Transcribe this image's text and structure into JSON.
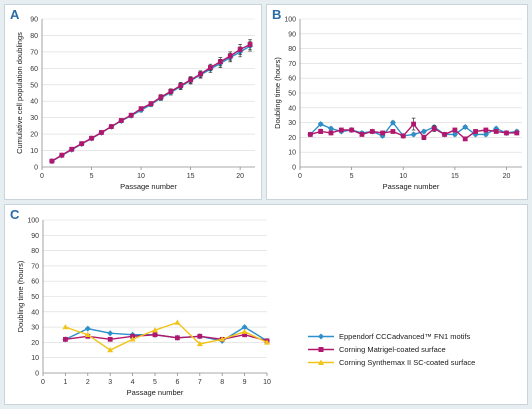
{
  "colors": {
    "eppendorf": "#2e8fc9",
    "matrigel": "#b0176d",
    "synthemax": "#f2c318",
    "grid": "#d9d9d9",
    "axis": "#8c8c8c"
  },
  "chart_data": [
    {
      "id": "A",
      "type": "line",
      "panel_label": "A",
      "xlabel": "Passage number",
      "ylabel": "Cumulative cell population doublings",
      "xlim": [
        0,
        21.5
      ],
      "ylim": [
        0,
        90
      ],
      "xticks": [
        0,
        5,
        10,
        15,
        20
      ],
      "yticks": [
        0,
        10,
        20,
        30,
        40,
        50,
        60,
        70,
        80,
        90
      ],
      "grid": true,
      "x": [
        1,
        2,
        3,
        4,
        5,
        6,
        7,
        8,
        9,
        10,
        11,
        12,
        13,
        14,
        15,
        16,
        17,
        18,
        19,
        20,
        21
      ],
      "series": [
        {
          "key": "eppendorf",
          "values": [
            3.5,
            7,
            10.5,
            14,
            17.3,
            20.8,
            24.5,
            28,
            31.2,
            34.5,
            38,
            42,
            45.3,
            49,
            52.5,
            56,
            59.5,
            63,
            66.5,
            70,
            73.5
          ],
          "errors": [
            0,
            0.5,
            0.5,
            0.8,
            0.8,
            0.8,
            1,
            1,
            1,
            1,
            1.2,
            1.5,
            1.5,
            2,
            2,
            2,
            2,
            2.5,
            2.5,
            3,
            3
          ]
        },
        {
          "key": "matrigel",
          "values": [
            3.6,
            7.2,
            10.8,
            14.2,
            17.5,
            21,
            24.6,
            28.3,
            31.5,
            35.5,
            38.5,
            42.5,
            46,
            49.5,
            53,
            56.5,
            60.5,
            64,
            67.5,
            71.5,
            74.5
          ],
          "errors": [
            0,
            0.5,
            0.5,
            0.8,
            0.8,
            0.8,
            1,
            1,
            1,
            1,
            1.2,
            1.5,
            1.5,
            2,
            2,
            2,
            2,
            2.5,
            2.5,
            3,
            3
          ]
        }
      ]
    },
    {
      "id": "B",
      "type": "line",
      "panel_label": "B",
      "xlabel": "Passage number",
      "ylabel": "Doubling time (hours)",
      "xlim": [
        0,
        21.5
      ],
      "ylim": [
        0,
        100
      ],
      "xticks": [
        0,
        5,
        10,
        15,
        20
      ],
      "yticks": [
        0,
        10,
        20,
        30,
        40,
        50,
        60,
        70,
        80,
        90,
        100
      ],
      "grid": true,
      "x": [
        1,
        2,
        3,
        4,
        5,
        6,
        7,
        8,
        9,
        10,
        11,
        12,
        13,
        14,
        15,
        16,
        17,
        18,
        19,
        20,
        21
      ],
      "series": [
        {
          "key": "eppendorf",
          "values": [
            22,
            29,
            26,
            24,
            25,
            23,
            24,
            21,
            30,
            21,
            22,
            24,
            27,
            22,
            22,
            27,
            22,
            22,
            26,
            23,
            24
          ],
          "errors": [
            1,
            1,
            1,
            1,
            1,
            1,
            1,
            1,
            1,
            1,
            1,
            1,
            1,
            1,
            1,
            1,
            1,
            1,
            1,
            1,
            1
          ]
        },
        {
          "key": "matrigel",
          "values": [
            22,
            24,
            23,
            25,
            25,
            22,
            24,
            23,
            24,
            21,
            29,
            20,
            26,
            22,
            25,
            19,
            24,
            25,
            24,
            23,
            23
          ],
          "errors": [
            1,
            1.5,
            1,
            1,
            1,
            1,
            1,
            1,
            1,
            1,
            4,
            1.5,
            2,
            1,
            1,
            1,
            1,
            1,
            1,
            1,
            1
          ]
        }
      ]
    },
    {
      "id": "C",
      "type": "line",
      "panel_label": "C",
      "xlabel": "Passage number",
      "ylabel": "Doubling time (hours)",
      "xlim": [
        0,
        10
      ],
      "ylim": [
        0,
        100
      ],
      "xticks": [
        0,
        1,
        2,
        3,
        4,
        5,
        6,
        7,
        8,
        9,
        10
      ],
      "yticks": [
        0,
        10,
        20,
        30,
        40,
        50,
        60,
        70,
        80,
        90,
        100
      ],
      "grid": true,
      "legend_position": "right",
      "x": [
        1,
        2,
        3,
        4,
        5,
        6,
        7,
        8,
        9,
        10
      ],
      "series": [
        {
          "key": "eppendorf",
          "name": "Eppendorf CCCadvanced™ FN1 motifs",
          "values": [
            22,
            29,
            26,
            25,
            25,
            23,
            24,
            21,
            30,
            21
          ]
        },
        {
          "key": "matrigel",
          "name": "Corning Matrigel-coated surface",
          "values": [
            22,
            24,
            22,
            24,
            25,
            23,
            24,
            22,
            25,
            21
          ]
        },
        {
          "key": "synthemax",
          "name": "Corning Synthemax II SC-coated surface",
          "values": [
            30,
            25,
            15,
            22,
            28,
            33,
            19,
            22,
            27,
            20
          ]
        }
      ]
    }
  ]
}
